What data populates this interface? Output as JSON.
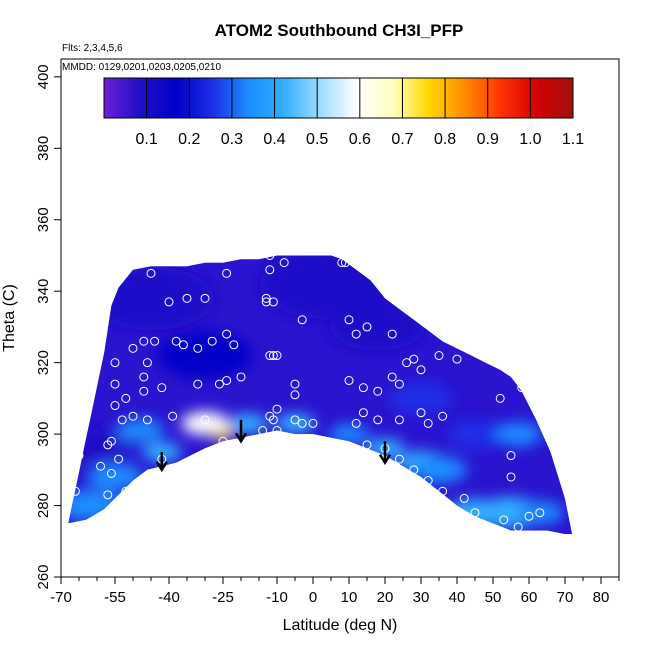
{
  "chart_data": {
    "type": "heatmap",
    "title": "ATOM2 Southbound CH3I_PFP",
    "annotations": [
      "Flts: 2,3,4,5,6",
      "MMDD: 0129,0201,0203,0205,0210"
    ],
    "xlabel": "Latitude (deg N)",
    "ylabel": "Theta (C)",
    "xlim": [
      -70,
      85
    ],
    "ylim": [
      260,
      405
    ],
    "x_ticks": [
      -70,
      -55,
      -40,
      -25,
      -10,
      0,
      10,
      20,
      30,
      40,
      50,
      60,
      70,
      80
    ],
    "x_tick_labels": [
      "-70",
      "-55",
      "-40",
      "-25",
      "-10",
      "0",
      "10",
      "20",
      "30",
      "40",
      "50",
      "60",
      "70",
      "80"
    ],
    "x_minor_ticks": [
      -65,
      -60,
      -50,
      -45,
      -35,
      -30,
      -20,
      -15,
      -5,
      5,
      15,
      25,
      35,
      45,
      55,
      65,
      75,
      85
    ],
    "y_ticks": [
      260,
      280,
      300,
      320,
      340,
      360,
      380,
      400
    ],
    "y_tick_labels": [
      "260",
      "280",
      "300",
      "320",
      "340",
      "360",
      "380",
      "400"
    ],
    "grid": false,
    "colorbar": {
      "range": [
        0.0,
        1.1
      ],
      "ticks": [
        0.1,
        0.2,
        0.3,
        0.4,
        0.5,
        0.6,
        0.7,
        0.8,
        0.9,
        1.0,
        1.1
      ],
      "tick_labels": [
        "0.1",
        "0.2",
        "0.3",
        "0.4",
        "0.5",
        "0.6",
        "0.7",
        "0.8",
        "0.9",
        "1.0",
        "1.1"
      ],
      "colors": [
        "#6b1fd6",
        "#1f10c8",
        "#0000c8",
        "#1e2ee6",
        "#1a8cff",
        "#33b0ff",
        "#9fdcff",
        "#ffffff",
        "#ffffc0",
        "#ffd700",
        "#ff8c00",
        "#ff3300",
        "#d40000",
        "#a01010"
      ]
    },
    "domain_top": [
      [
        -58,
        323
      ],
      [
        -56,
        336
      ],
      [
        -54,
        341
      ],
      [
        -50,
        346
      ],
      [
        -45,
        347
      ],
      [
        -40,
        347
      ],
      [
        -35,
        347
      ],
      [
        -30,
        348
      ],
      [
        -25,
        348
      ],
      [
        -20,
        349
      ],
      [
        -15,
        349
      ],
      [
        -10,
        350
      ],
      [
        -5,
        350
      ],
      [
        0,
        350
      ],
      [
        5,
        350
      ],
      [
        8,
        349
      ],
      [
        12,
        346
      ],
      [
        16,
        343
      ],
      [
        20,
        338
      ],
      [
        24,
        335
      ],
      [
        28,
        332
      ],
      [
        32,
        329
      ],
      [
        36,
        326
      ],
      [
        40,
        324
      ],
      [
        44,
        322
      ],
      [
        48,
        320
      ],
      [
        52,
        318
      ],
      [
        55,
        316
      ],
      [
        58,
        312
      ],
      [
        62,
        304
      ],
      [
        66,
        295
      ],
      [
        70,
        282
      ],
      [
        72,
        272
      ]
    ],
    "domain_bottom": [
      [
        -68,
        275
      ],
      [
        -63,
        276
      ],
      [
        -58,
        279
      ],
      [
        -54,
        283
      ],
      [
        -50,
        287
      ],
      [
        -46,
        290
      ],
      [
        -42,
        291
      ],
      [
        -38,
        292
      ],
      [
        -34,
        294
      ],
      [
        -30,
        296
      ],
      [
        -25,
        298
      ],
      [
        -20,
        299
      ],
      [
        -15,
        300
      ],
      [
        -10,
        301
      ],
      [
        -5,
        300
      ],
      [
        0,
        300
      ],
      [
        5,
        299
      ],
      [
        10,
        298
      ],
      [
        15,
        296
      ],
      [
        20,
        294
      ],
      [
        25,
        291
      ],
      [
        30,
        288
      ],
      [
        35,
        284
      ],
      [
        40,
        280
      ],
      [
        45,
        277
      ],
      [
        50,
        275
      ],
      [
        55,
        273
      ],
      [
        60,
        273
      ],
      [
        65,
        273
      ],
      [
        70,
        272
      ],
      [
        72,
        272
      ]
    ],
    "blobs": [
      {
        "lat": -45,
        "theta": 338,
        "value": 0.05,
        "radius": 16
      },
      {
        "lat": 5,
        "theta": 342,
        "value": 0.05,
        "radius": 18
      },
      {
        "lat": 18,
        "theta": 330,
        "value": 0.1,
        "radius": 12
      },
      {
        "lat": -30,
        "theta": 322,
        "value": 0.15,
        "radius": 12
      },
      {
        "lat": -60,
        "theta": 297,
        "value": 0.1,
        "radius": 8
      },
      {
        "lat": -62,
        "theta": 280,
        "value": 0.35,
        "radius": 8
      },
      {
        "lat": -55,
        "theta": 288,
        "value": 0.35,
        "radius": 7
      },
      {
        "lat": -48,
        "theta": 301,
        "value": 0.35,
        "radius": 6
      },
      {
        "lat": -42,
        "theta": 295,
        "value": 0.45,
        "radius": 5
      },
      {
        "lat": -30,
        "theta": 303,
        "value": 0.55,
        "radius": 6
      },
      {
        "lat": -25,
        "theta": 300,
        "value": 0.8,
        "radius": 3
      },
      {
        "lat": -18,
        "theta": 303,
        "value": 0.45,
        "radius": 5
      },
      {
        "lat": -5,
        "theta": 303,
        "value": 0.4,
        "radius": 5
      },
      {
        "lat": 10,
        "theta": 300,
        "value": 0.35,
        "radius": 5
      },
      {
        "lat": 20,
        "theta": 296,
        "value": 0.45,
        "radius": 5
      },
      {
        "lat": 30,
        "theta": 292,
        "value": 0.4,
        "radius": 6
      },
      {
        "lat": 35,
        "theta": 290,
        "value": 0.35,
        "radius": 7
      },
      {
        "lat": 45,
        "theta": 278,
        "value": 0.4,
        "radius": 7
      },
      {
        "lat": 55,
        "theta": 278,
        "value": 0.45,
        "radius": 8
      },
      {
        "lat": 63,
        "theta": 278,
        "value": 0.35,
        "radius": 6
      },
      {
        "lat": 45,
        "theta": 300,
        "value": 0.25,
        "radius": 7
      },
      {
        "lat": 57,
        "theta": 300,
        "value": 0.3,
        "radius": 6
      },
      {
        "lat": 30,
        "theta": 310,
        "value": 0.22,
        "radius": 8
      }
    ],
    "samples": [
      [
        -45,
        345
      ],
      [
        -40,
        337
      ],
      [
        -35,
        338
      ],
      [
        -30,
        338
      ],
      [
        -24,
        345
      ],
      [
        -12,
        350
      ],
      [
        -12,
        346
      ],
      [
        -8,
        348
      ],
      [
        -13,
        338
      ],
      [
        -13,
        337
      ],
      [
        -11,
        337
      ],
      [
        -3,
        332
      ],
      [
        8,
        348
      ],
      [
        9,
        348
      ],
      [
        10,
        332
      ],
      [
        15,
        330
      ],
      [
        12,
        328
      ],
      [
        22,
        328
      ],
      [
        -50,
        324
      ],
      [
        -47,
        326
      ],
      [
        -44,
        326
      ],
      [
        -38,
        326
      ],
      [
        -36,
        325
      ],
      [
        -32,
        324
      ],
      [
        -28,
        326
      ],
      [
        -24,
        328
      ],
      [
        -22,
        325
      ],
      [
        -12,
        322
      ],
      [
        -11,
        322
      ],
      [
        -10,
        322
      ],
      [
        -55,
        320
      ],
      [
        -46,
        320
      ],
      [
        -47,
        316
      ],
      [
        -55,
        314
      ],
      [
        -47,
        312
      ],
      [
        -42,
        313
      ],
      [
        -32,
        314
      ],
      [
        -26,
        314
      ],
      [
        -24,
        315
      ],
      [
        -20,
        316
      ],
      [
        -5,
        314
      ],
      [
        -5,
        311
      ],
      [
        10,
        315
      ],
      [
        14,
        313
      ],
      [
        18,
        312
      ],
      [
        22,
        316
      ],
      [
        24,
        314
      ],
      [
        26,
        320
      ],
      [
        28,
        321
      ],
      [
        30,
        318
      ],
      [
        35,
        322
      ],
      [
        40,
        321
      ],
      [
        52,
        310
      ],
      [
        58,
        313
      ],
      [
        -52,
        310
      ],
      [
        -55,
        308
      ],
      [
        -50,
        305
      ],
      [
        -46,
        304
      ],
      [
        -39,
        305
      ],
      [
        -30,
        304
      ],
      [
        -12,
        305
      ],
      [
        -11,
        304
      ],
      [
        -10,
        307
      ],
      [
        -10,
        301
      ],
      [
        -3,
        303
      ],
      [
        12,
        303
      ],
      [
        14,
        306
      ],
      [
        18,
        304
      ],
      [
        24,
        304
      ],
      [
        30,
        306
      ],
      [
        32,
        303
      ],
      [
        36,
        305
      ],
      [
        -57,
        297
      ],
      [
        -56,
        298
      ],
      [
        -59,
        291
      ],
      [
        -54,
        293
      ],
      [
        -42,
        293
      ],
      [
        -25,
        298
      ],
      [
        -14,
        301
      ],
      [
        -5,
        304
      ],
      [
        0,
        303
      ],
      [
        15,
        297
      ],
      [
        20,
        296
      ],
      [
        24,
        293
      ],
      [
        28,
        290
      ],
      [
        32,
        287
      ],
      [
        36,
        284
      ],
      [
        42,
        282
      ],
      [
        45,
        278
      ],
      [
        53,
        276
      ],
      [
        57,
        274
      ],
      [
        63,
        278
      ],
      [
        60,
        277
      ],
      [
        55,
        294
      ],
      [
        55,
        288
      ],
      [
        -65,
        294
      ],
      [
        -66,
        284
      ],
      [
        -57,
        283
      ],
      [
        -56,
        289
      ],
      [
        -52,
        284
      ],
      [
        -53,
        304
      ]
    ],
    "arrows": [
      [
        -42,
        295,
        290
      ],
      [
        -20,
        304,
        298
      ],
      [
        20,
        298,
        292
      ]
    ]
  }
}
